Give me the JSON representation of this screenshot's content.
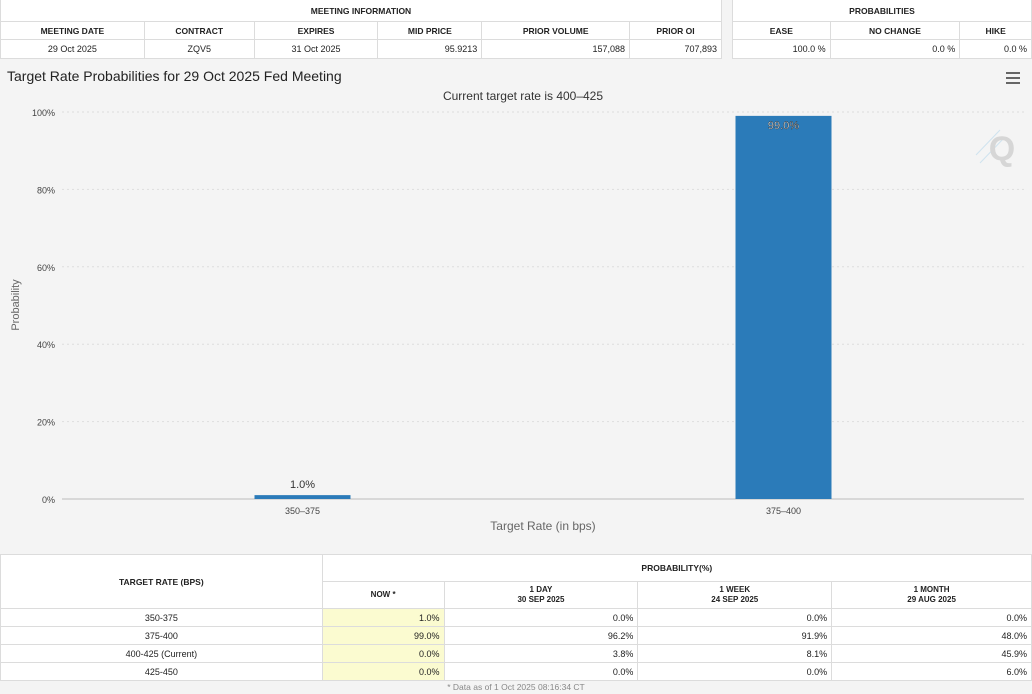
{
  "meeting_info": {
    "title": "MEETING INFORMATION",
    "headers": [
      "MEETING DATE",
      "CONTRACT",
      "EXPIRES",
      "MID PRICE",
      "PRIOR VOLUME",
      "PRIOR OI"
    ],
    "values": [
      "29 Oct 2025",
      "ZQV5",
      "31 Oct 2025",
      "95.9213",
      "157,088",
      "707,893"
    ]
  },
  "probabilities": {
    "title": "PROBABILITIES",
    "headers": [
      "EASE",
      "NO CHANGE",
      "HIKE"
    ],
    "values": [
      "100.0 %",
      "0.0 %",
      "0.0 %"
    ]
  },
  "chart_title": "Target Rate Probabilities for 29 Oct 2025 Fed Meeting",
  "chart_data": {
    "type": "bar",
    "subtitle": "Current target rate is 400–425",
    "categories": [
      "350–375",
      "375–400"
    ],
    "values": [
      1.0,
      99.0
    ],
    "value_labels": [
      "1.0%",
      "99.0%"
    ],
    "xlabel": "Target Rate (in bps)",
    "ylabel": "Probability",
    "ylim": [
      0,
      100
    ],
    "y_ticks": [
      0,
      20,
      40,
      60,
      80,
      100
    ],
    "y_tick_labels": [
      "0%",
      "20%",
      "40%",
      "60%",
      "80%",
      "100%"
    ],
    "grid": true,
    "bar_color": "#2b7bb9"
  },
  "watermark": "Q",
  "bottom_table": {
    "col1_header": "TARGET RATE (BPS)",
    "group_header": "PROBABILITY(%)",
    "subheaders": [
      {
        "line1": "NOW *",
        "line2": ""
      },
      {
        "line1": "1 DAY",
        "line2": "30 SEP 2025"
      },
      {
        "line1": "1 WEEK",
        "line2": "24 SEP 2025"
      },
      {
        "line1": "1 MONTH",
        "line2": "29 AUG 2025"
      }
    ],
    "rows": [
      {
        "rate": "350-375",
        "now": "1.0%",
        "day": "0.0%",
        "week": "0.0%",
        "month": "0.0%"
      },
      {
        "rate": "375-400",
        "now": "99.0%",
        "day": "96.2%",
        "week": "91.9%",
        "month": "48.0%"
      },
      {
        "rate": "400-425 (Current)",
        "now": "0.0%",
        "day": "3.8%",
        "week": "8.1%",
        "month": "45.9%"
      },
      {
        "rate": "425-450",
        "now": "0.0%",
        "day": "0.0%",
        "week": "0.0%",
        "month": "6.0%"
      }
    ]
  },
  "footnote": "* Data as of 1 Oct 2025 08:16:34 CT",
  "icons": {
    "menu": "menu-icon"
  }
}
